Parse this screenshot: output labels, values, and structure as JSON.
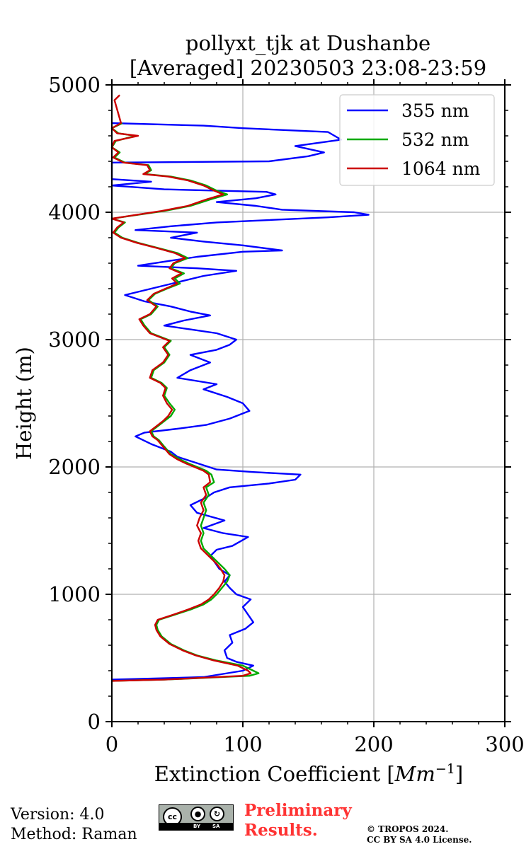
{
  "chart_data": {
    "type": "line",
    "title_lines": [
      "pollyxt_tjk at Dushanbe",
      "[Averaged] 20230503 23:08-23:59"
    ],
    "xlabel": "Extinction Coefficient [",
    "xlabel_unit": "Mm",
    "xlabel_exp": "−1",
    "xlabel_close": "]",
    "ylabel": "Height (m)",
    "xlim": [
      0,
      300
    ],
    "ylim": [
      0,
      5000
    ],
    "x_ticks": [
      0,
      100,
      200,
      300
    ],
    "y_ticks": [
      0,
      1000,
      2000,
      3000,
      4000,
      5000
    ],
    "grid": true,
    "legend_position": "top-right",
    "series": [
      {
        "name": "355 nm",
        "color": "#0000ff",
        "points": [
          [
            0,
            330
          ],
          [
            70,
            350
          ],
          [
            100,
            400
          ],
          [
            108,
            440
          ],
          [
            95,
            470
          ],
          [
            88,
            500
          ],
          [
            86,
            560
          ],
          [
            92,
            620
          ],
          [
            90,
            680
          ],
          [
            102,
            730
          ],
          [
            108,
            780
          ],
          [
            104,
            840
          ],
          [
            100,
            900
          ],
          [
            106,
            960
          ],
          [
            95,
            1000
          ],
          [
            90,
            1050
          ],
          [
            86,
            1100
          ],
          [
            90,
            1150
          ],
          [
            82,
            1200
          ],
          [
            78,
            1260
          ],
          [
            75,
            1300
          ],
          [
            80,
            1350
          ],
          [
            92,
            1380
          ],
          [
            104,
            1450
          ],
          [
            85,
            1480
          ],
          [
            70,
            1520
          ],
          [
            86,
            1580
          ],
          [
            65,
            1640
          ],
          [
            60,
            1700
          ],
          [
            72,
            1760
          ],
          [
            78,
            1800
          ],
          [
            90,
            1840
          ],
          [
            120,
            1870
          ],
          [
            140,
            1900
          ],
          [
            144,
            1940
          ],
          [
            108,
            1960
          ],
          [
            80,
            1980
          ],
          [
            65,
            2030
          ],
          [
            50,
            2080
          ],
          [
            45,
            2120
          ],
          [
            30,
            2180
          ],
          [
            18,
            2240
          ],
          [
            25,
            2270
          ],
          [
            50,
            2300
          ],
          [
            72,
            2330
          ],
          [
            90,
            2380
          ],
          [
            105,
            2440
          ],
          [
            100,
            2500
          ],
          [
            88,
            2550
          ],
          [
            70,
            2610
          ],
          [
            80,
            2650
          ],
          [
            50,
            2700
          ],
          [
            60,
            2760
          ],
          [
            75,
            2820
          ],
          [
            60,
            2880
          ],
          [
            80,
            2920
          ],
          [
            90,
            2960
          ],
          [
            95,
            3000
          ],
          [
            80,
            3050
          ],
          [
            60,
            3080
          ],
          [
            40,
            3110
          ],
          [
            55,
            3150
          ],
          [
            75,
            3190
          ],
          [
            60,
            3220
          ],
          [
            45,
            3260
          ],
          [
            25,
            3300
          ],
          [
            10,
            3350
          ],
          [
            30,
            3400
          ],
          [
            50,
            3450
          ],
          [
            70,
            3500
          ],
          [
            95,
            3540
          ],
          [
            65,
            3560
          ],
          [
            20,
            3580
          ],
          [
            45,
            3620
          ],
          [
            65,
            3650
          ],
          [
            100,
            3690
          ],
          [
            130,
            3700
          ],
          [
            100,
            3740
          ],
          [
            70,
            3770
          ],
          [
            45,
            3800
          ],
          [
            65,
            3840
          ],
          [
            18,
            3860
          ],
          [
            45,
            3890
          ],
          [
            80,
            3920
          ],
          [
            165,
            3960
          ],
          [
            196,
            3980
          ],
          [
            185,
            4000
          ],
          [
            130,
            4020
          ],
          [
            110,
            4050
          ],
          [
            80,
            4080
          ],
          [
            110,
            4110
          ],
          [
            125,
            4140
          ],
          [
            118,
            4160
          ],
          [
            40,
            4180
          ],
          [
            0,
            4210
          ],
          [
            30,
            4240
          ],
          [
            0,
            4260
          ],
          [
            0,
            4300
          ],
          [
            0,
            4390
          ],
          [
            120,
            4400
          ],
          [
            150,
            4440
          ],
          [
            162,
            4470
          ],
          [
            140,
            4520
          ],
          [
            175,
            4570
          ],
          [
            165,
            4630
          ],
          [
            100,
            4660
          ],
          [
            70,
            4680
          ],
          [
            0,
            4700
          ]
        ]
      },
      {
        "name": "532 nm",
        "color": "#00aa00",
        "points": [
          [
            0,
            320
          ],
          [
            40,
            330
          ],
          [
            105,
            360
          ],
          [
            112,
            380
          ],
          [
            108,
            400
          ],
          [
            100,
            440
          ],
          [
            80,
            480
          ],
          [
            65,
            520
          ],
          [
            55,
            560
          ],
          [
            45,
            610
          ],
          [
            38,
            670
          ],
          [
            35,
            720
          ],
          [
            34,
            760
          ],
          [
            36,
            800
          ],
          [
            48,
            840
          ],
          [
            60,
            880
          ],
          [
            70,
            920
          ],
          [
            76,
            960
          ],
          [
            80,
            1000
          ],
          [
            84,
            1050
          ],
          [
            88,
            1100
          ],
          [
            90,
            1150
          ],
          [
            86,
            1200
          ],
          [
            82,
            1240
          ],
          [
            78,
            1280
          ],
          [
            74,
            1320
          ],
          [
            70,
            1360
          ],
          [
            68,
            1420
          ],
          [
            70,
            1480
          ],
          [
            68,
            1540
          ],
          [
            70,
            1600
          ],
          [
            72,
            1660
          ],
          [
            70,
            1720
          ],
          [
            74,
            1780
          ],
          [
            72,
            1840
          ],
          [
            78,
            1880
          ],
          [
            76,
            1940
          ],
          [
            72,
            1970
          ],
          [
            65,
            2000
          ],
          [
            58,
            2030
          ],
          [
            52,
            2060
          ],
          [
            45,
            2100
          ],
          [
            40,
            2160
          ],
          [
            36,
            2210
          ],
          [
            32,
            2240
          ],
          [
            30,
            2280
          ],
          [
            35,
            2320
          ],
          [
            40,
            2360
          ],
          [
            45,
            2400
          ],
          [
            48,
            2450
          ],
          [
            44,
            2500
          ],
          [
            40,
            2560
          ],
          [
            42,
            2620
          ],
          [
            38,
            2660
          ],
          [
            30,
            2700
          ],
          [
            32,
            2760
          ],
          [
            40,
            2820
          ],
          [
            44,
            2880
          ],
          [
            40,
            2940
          ],
          [
            45,
            2990
          ],
          [
            30,
            3050
          ],
          [
            25,
            3110
          ],
          [
            22,
            3160
          ],
          [
            30,
            3200
          ],
          [
            35,
            3260
          ],
          [
            28,
            3310
          ],
          [
            33,
            3360
          ],
          [
            42,
            3400
          ],
          [
            52,
            3440
          ],
          [
            48,
            3480
          ],
          [
            55,
            3520
          ],
          [
            45,
            3560
          ],
          [
            48,
            3600
          ],
          [
            58,
            3640
          ],
          [
            50,
            3680
          ],
          [
            35,
            3720
          ],
          [
            20,
            3760
          ],
          [
            8,
            3800
          ],
          [
            2,
            3840
          ],
          [
            5,
            3880
          ],
          [
            10,
            3920
          ],
          [
            0,
            3950
          ],
          [
            20,
            3980
          ],
          [
            40,
            4010
          ],
          [
            60,
            4050
          ],
          [
            75,
            4100
          ],
          [
            88,
            4140
          ],
          [
            80,
            4170
          ],
          [
            72,
            4210
          ],
          [
            60,
            4250
          ],
          [
            45,
            4280
          ],
          [
            25,
            4300
          ],
          [
            30,
            4330
          ],
          [
            28,
            4370
          ],
          [
            10,
            4390
          ],
          [
            2,
            4430
          ],
          [
            6,
            4470
          ],
          [
            0,
            4510
          ],
          [
            3,
            4560
          ],
          [
            18,
            4600
          ],
          [
            5,
            4620
          ],
          [
            0,
            4660
          ],
          [
            8,
            4700
          ]
        ]
      },
      {
        "name": "1064 nm",
        "color": "#cc0000",
        "points": [
          [
            0,
            320
          ],
          [
            40,
            330
          ],
          [
            100,
            360
          ],
          [
            106,
            380
          ],
          [
            104,
            400
          ],
          [
            96,
            440
          ],
          [
            78,
            480
          ],
          [
            64,
            520
          ],
          [
            54,
            560
          ],
          [
            44,
            610
          ],
          [
            37,
            670
          ],
          [
            34,
            720
          ],
          [
            33,
            760
          ],
          [
            35,
            800
          ],
          [
            47,
            840
          ],
          [
            58,
            880
          ],
          [
            68,
            920
          ],
          [
            74,
            960
          ],
          [
            78,
            1000
          ],
          [
            82,
            1050
          ],
          [
            85,
            1100
          ],
          [
            86,
            1150
          ],
          [
            83,
            1200
          ],
          [
            80,
            1240
          ],
          [
            76,
            1280
          ],
          [
            72,
            1320
          ],
          [
            68,
            1360
          ],
          [
            66,
            1420
          ],
          [
            68,
            1480
          ],
          [
            65,
            1540
          ],
          [
            67,
            1600
          ],
          [
            70,
            1660
          ],
          [
            68,
            1720
          ],
          [
            72,
            1780
          ],
          [
            70,
            1840
          ],
          [
            75,
            1880
          ],
          [
            74,
            1940
          ],
          [
            70,
            1970
          ],
          [
            63,
            2000
          ],
          [
            56,
            2030
          ],
          [
            50,
            2060
          ],
          [
            44,
            2100
          ],
          [
            39,
            2160
          ],
          [
            35,
            2210
          ],
          [
            31,
            2240
          ],
          [
            29,
            2280
          ],
          [
            34,
            2320
          ],
          [
            39,
            2360
          ],
          [
            43,
            2400
          ],
          [
            46,
            2450
          ],
          [
            42,
            2500
          ],
          [
            39,
            2560
          ],
          [
            41,
            2620
          ],
          [
            37,
            2660
          ],
          [
            29,
            2700
          ],
          [
            31,
            2760
          ],
          [
            39,
            2820
          ],
          [
            43,
            2880
          ],
          [
            39,
            2940
          ],
          [
            44,
            2990
          ],
          [
            29,
            3050
          ],
          [
            24,
            3110
          ],
          [
            21,
            3160
          ],
          [
            29,
            3200
          ],
          [
            34,
            3260
          ],
          [
            27,
            3310
          ],
          [
            32,
            3360
          ],
          [
            41,
            3400
          ],
          [
            50,
            3440
          ],
          [
            46,
            3480
          ],
          [
            53,
            3520
          ],
          [
            44,
            3560
          ],
          [
            47,
            3600
          ],
          [
            56,
            3640
          ],
          [
            48,
            3680
          ],
          [
            34,
            3720
          ],
          [
            19,
            3760
          ],
          [
            7,
            3800
          ],
          [
            1,
            3840
          ],
          [
            4,
            3880
          ],
          [
            9,
            3920
          ],
          [
            0,
            3950
          ],
          [
            19,
            3980
          ],
          [
            38,
            4010
          ],
          [
            58,
            4050
          ],
          [
            72,
            4100
          ],
          [
            85,
            4140
          ],
          [
            78,
            4170
          ],
          [
            70,
            4210
          ],
          [
            58,
            4250
          ],
          [
            43,
            4280
          ],
          [
            24,
            4300
          ],
          [
            29,
            4330
          ],
          [
            27,
            4370
          ],
          [
            9,
            4390
          ],
          [
            1,
            4430
          ],
          [
            5,
            4470
          ],
          [
            0,
            4510
          ],
          [
            2,
            4560
          ],
          [
            20,
            4600
          ],
          [
            4,
            4620
          ],
          [
            0,
            4660
          ],
          [
            7,
            4700
          ],
          [
            2,
            4880
          ],
          [
            6,
            4920
          ]
        ]
      }
    ]
  },
  "footer": {
    "version": "Version: 4.0",
    "method": "Method: Raman",
    "preliminary_line1": "Preliminary",
    "preliminary_line2": "Results.",
    "copyright_line1": "© TROPOS 2024.",
    "copyright_line2": "CC BY SA 4.0 License.",
    "license_badge": {
      "cc": "cc",
      "by": "BY",
      "sa": "SA",
      "by_icon": "person-icon",
      "sa_icon": "share-alike-icon"
    }
  }
}
